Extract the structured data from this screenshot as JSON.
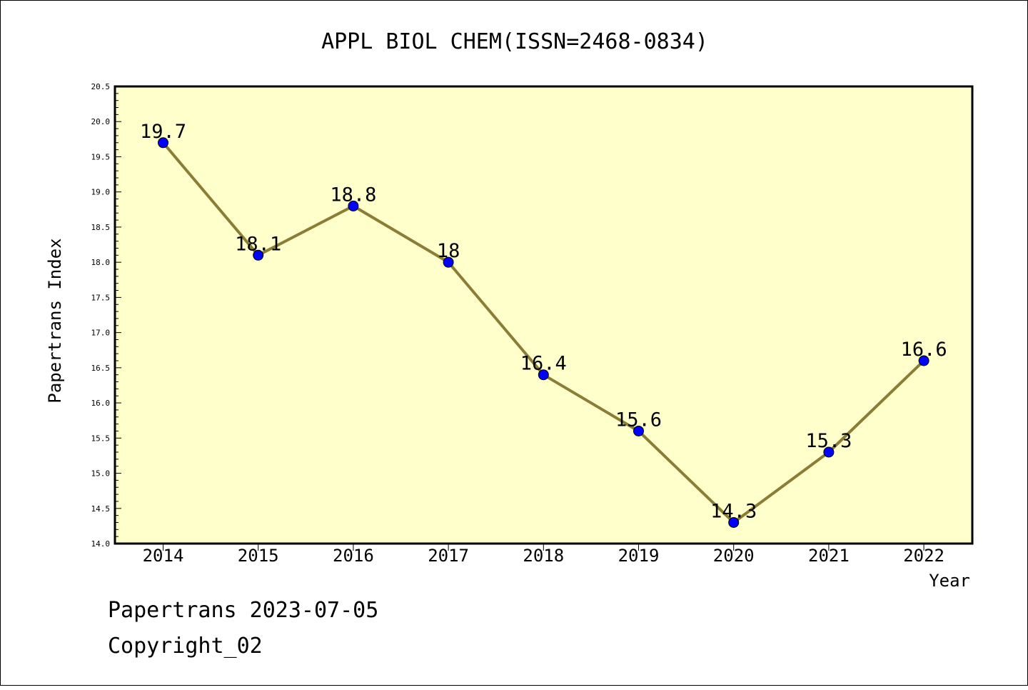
{
  "chart_data": {
    "type": "line",
    "title": "APPL BIOL CHEM(ISSN=2468-0834)",
    "xlabel": "Year",
    "ylabel": "Papertrans Index",
    "categories": [
      "2014",
      "2015",
      "2016",
      "2017",
      "2018",
      "2019",
      "2020",
      "2021",
      "2022"
    ],
    "values": [
      19.7,
      18.1,
      18.8,
      18.0,
      16.4,
      15.6,
      14.3,
      15.3,
      16.6
    ],
    "point_labels": [
      "19.7",
      "18.1",
      "18.8",
      "18",
      "16.4",
      "15.6",
      "14.3",
      "15.3",
      "16.6"
    ],
    "ylim": [
      14.0,
      20.5
    ],
    "yticks": [
      "14.0",
      "14.5",
      "15.0",
      "15.5",
      "16.0",
      "16.5",
      "17.0",
      "17.5",
      "18.0",
      "18.5",
      "19.0",
      "19.5",
      "20.0",
      "20.5"
    ],
    "grid": false,
    "colors": {
      "plot_background": "#ffffcc",
      "line": "#8b7d35",
      "marker": "#0000ff"
    }
  },
  "footer": {
    "line1": "Papertrans 2023-07-05",
    "line2": "Copyright_02"
  }
}
